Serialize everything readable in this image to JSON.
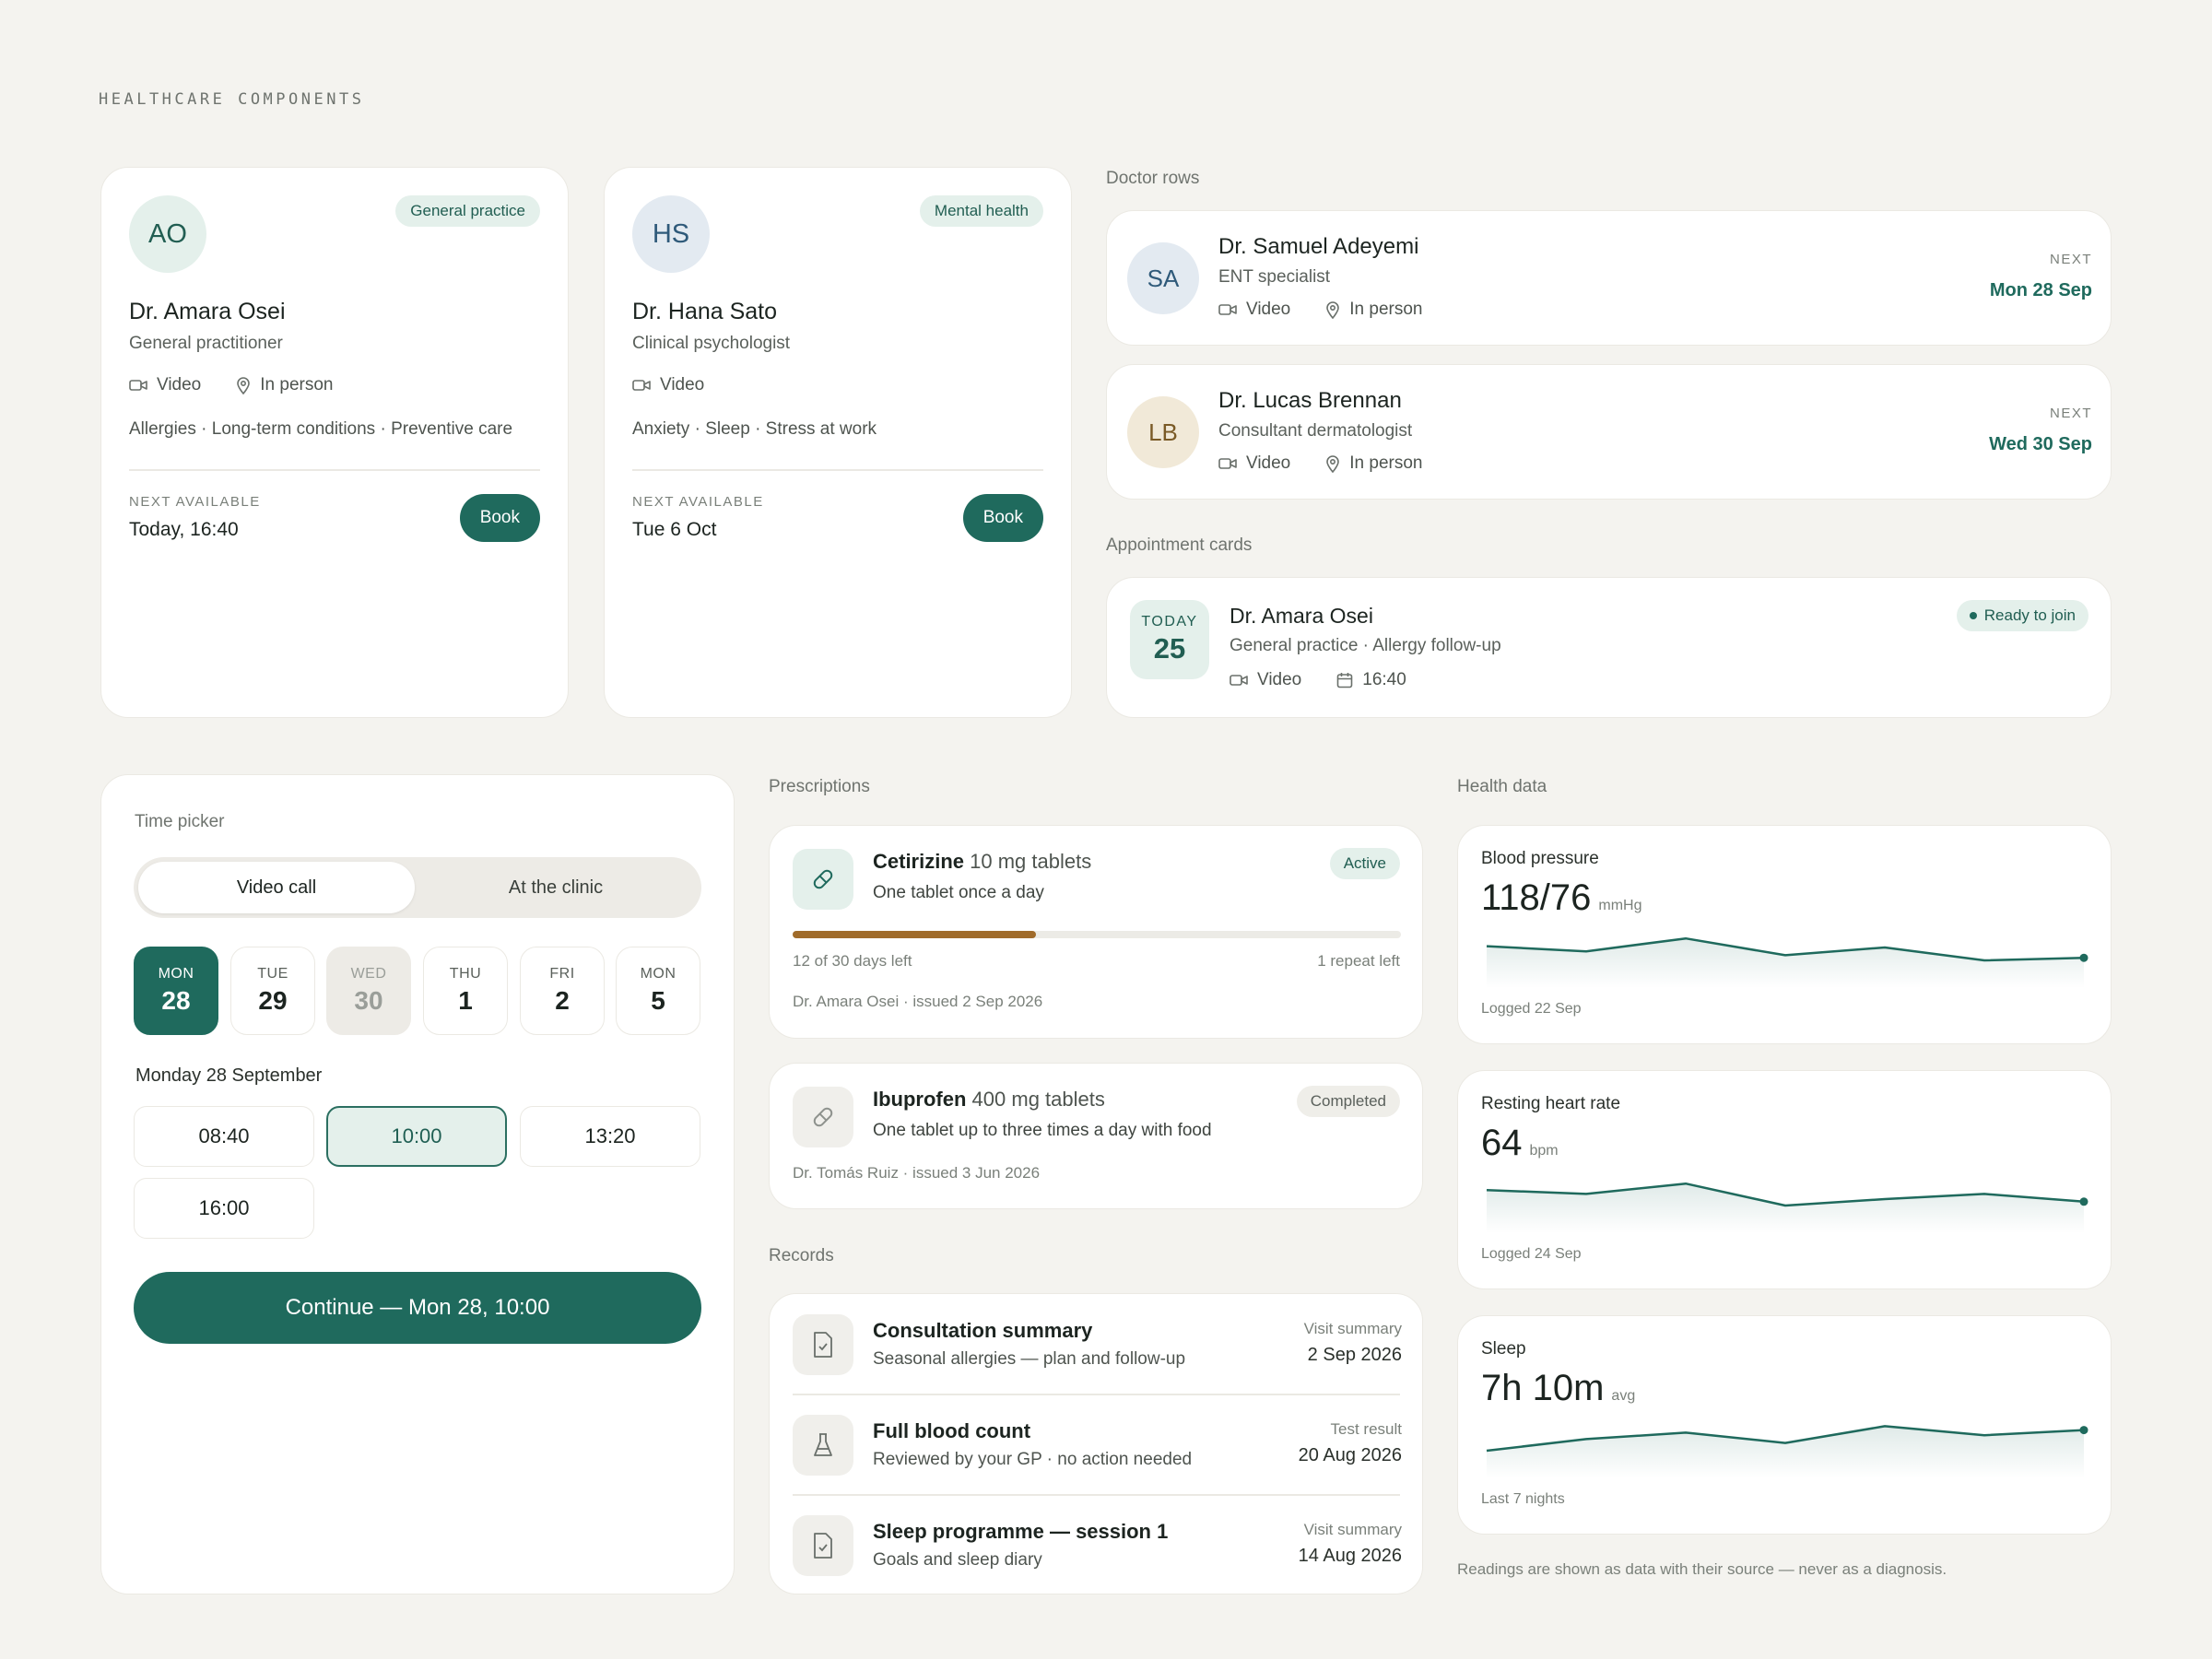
{
  "page_title": "HEALTHCARE COMPONENTS",
  "sections": {
    "doctor_rows": "Doctor rows",
    "appointment_cards": "Appointment cards",
    "prescriptions": "Prescriptions",
    "health_data": "Health data",
    "records": "Records"
  },
  "colors": {
    "accent": "#1f6a5d",
    "accent_soft": "#e4f0eb",
    "background": "#f4f3ef",
    "progress": "#a06b2a"
  },
  "doctor_cards": [
    {
      "initials": "AO",
      "specialty": "General practice",
      "name": "Dr. Amara Osei",
      "role": "General practitioner",
      "modes": [
        "Video",
        "In person"
      ],
      "tags": "Allergies · Long-term conditions · Preventive care",
      "next_label": "NEXT AVAILABLE",
      "next_value": "Today, 16:40",
      "book_label": "Book"
    },
    {
      "initials": "HS",
      "specialty": "Mental health",
      "name": "Dr. Hana Sato",
      "role": "Clinical psychologist",
      "modes": [
        "Video"
      ],
      "tags": "Anxiety · Sleep · Stress at work",
      "next_label": "NEXT AVAILABLE",
      "next_value": "Tue 6 Oct",
      "book_label": "Book"
    }
  ],
  "doctor_rows": [
    {
      "initials": "SA",
      "name": "Dr. Samuel Adeyemi",
      "role": "ENT specialist",
      "modes": [
        "Video",
        "In person"
      ],
      "next_label": "NEXT",
      "next_value": "Mon 28 Sep"
    },
    {
      "initials": "LB",
      "name": "Dr. Lucas Brennan",
      "role": "Consultant dermatologist",
      "modes": [
        "Video",
        "In person"
      ],
      "next_label": "NEXT",
      "next_value": "Wed 30 Sep"
    }
  ],
  "appointment": {
    "day_label": "TODAY",
    "day_number": "25",
    "doctor": "Dr. Amara Osei",
    "detail": "General practice · Allergy follow-up",
    "mode": "Video",
    "time": "16:40",
    "status": "Ready to join"
  },
  "time_picker": {
    "label": "Time picker",
    "segments": [
      "Video call",
      "At the clinic"
    ],
    "days": [
      {
        "dow": "MON",
        "num": "28",
        "state": "selected"
      },
      {
        "dow": "TUE",
        "num": "29",
        "state": "default"
      },
      {
        "dow": "WED",
        "num": "30",
        "state": "disabled"
      },
      {
        "dow": "THU",
        "num": "1",
        "state": "default"
      },
      {
        "dow": "FRI",
        "num": "2",
        "state": "default"
      },
      {
        "dow": "MON",
        "num": "5",
        "state": "default"
      }
    ],
    "selected_date_label": "Monday 28 September",
    "slots": [
      "08:40",
      "10:00",
      "13:20",
      "16:00"
    ],
    "selected_slot": "10:00",
    "continue_label": "Continue — Mon 28, 10:00"
  },
  "prescriptions": [
    {
      "drug": "Cetirizine",
      "dose": " 10 mg tablets",
      "instructions": "One tablet once a day",
      "status": "Active",
      "progress_fraction": 0.4,
      "days_left": "12 of 30 days left",
      "repeats": "1 repeat left",
      "issued": "Dr. Amara Osei · issued 2 Sep 2026"
    },
    {
      "drug": "Ibuprofen",
      "dose": " 400 mg tablets",
      "instructions": "One tablet up to three times a day with food",
      "status": "Completed",
      "issued": "Dr. Tomás Ruiz · issued 3 Jun 2026"
    }
  ],
  "records": [
    {
      "icon": "document-icon",
      "title": "Consultation summary",
      "subtitle": "Seasonal allergies — plan and follow-up",
      "type": "Visit summary",
      "date": "2 Sep 2026"
    },
    {
      "icon": "flask-icon",
      "title": "Full blood count",
      "subtitle": "Reviewed by your GP · no action needed",
      "type": "Test result",
      "date": "20 Aug 2026"
    },
    {
      "icon": "document-icon",
      "title": "Sleep programme — session 1",
      "subtitle": "Goals and sleep diary",
      "type": "Visit summary",
      "date": "14 Aug 2026"
    }
  ],
  "health_data": [
    {
      "label": "Blood pressure",
      "value": "118/76",
      "unit": "mmHg",
      "footer": "Logged 22 Sep",
      "trend": [
        0.55,
        0.35,
        0.85,
        0.2,
        0.5,
        0.0,
        0.1
      ]
    },
    {
      "label": "Resting heart rate",
      "value": "64",
      "unit": "bpm",
      "footer": "Logged 24 Sep",
      "trend": [
        0.6,
        0.45,
        0.85,
        0.0,
        0.25,
        0.45,
        0.15
      ]
    },
    {
      "label": "Sleep",
      "value": "7h 10m",
      "unit": "avg",
      "footer": "Last 7 nights",
      "trend": [
        0.0,
        0.45,
        0.7,
        0.3,
        0.95,
        0.6,
        0.8
      ]
    }
  ],
  "footnote": "Readings are shown as data with their source — never as a diagnosis."
}
